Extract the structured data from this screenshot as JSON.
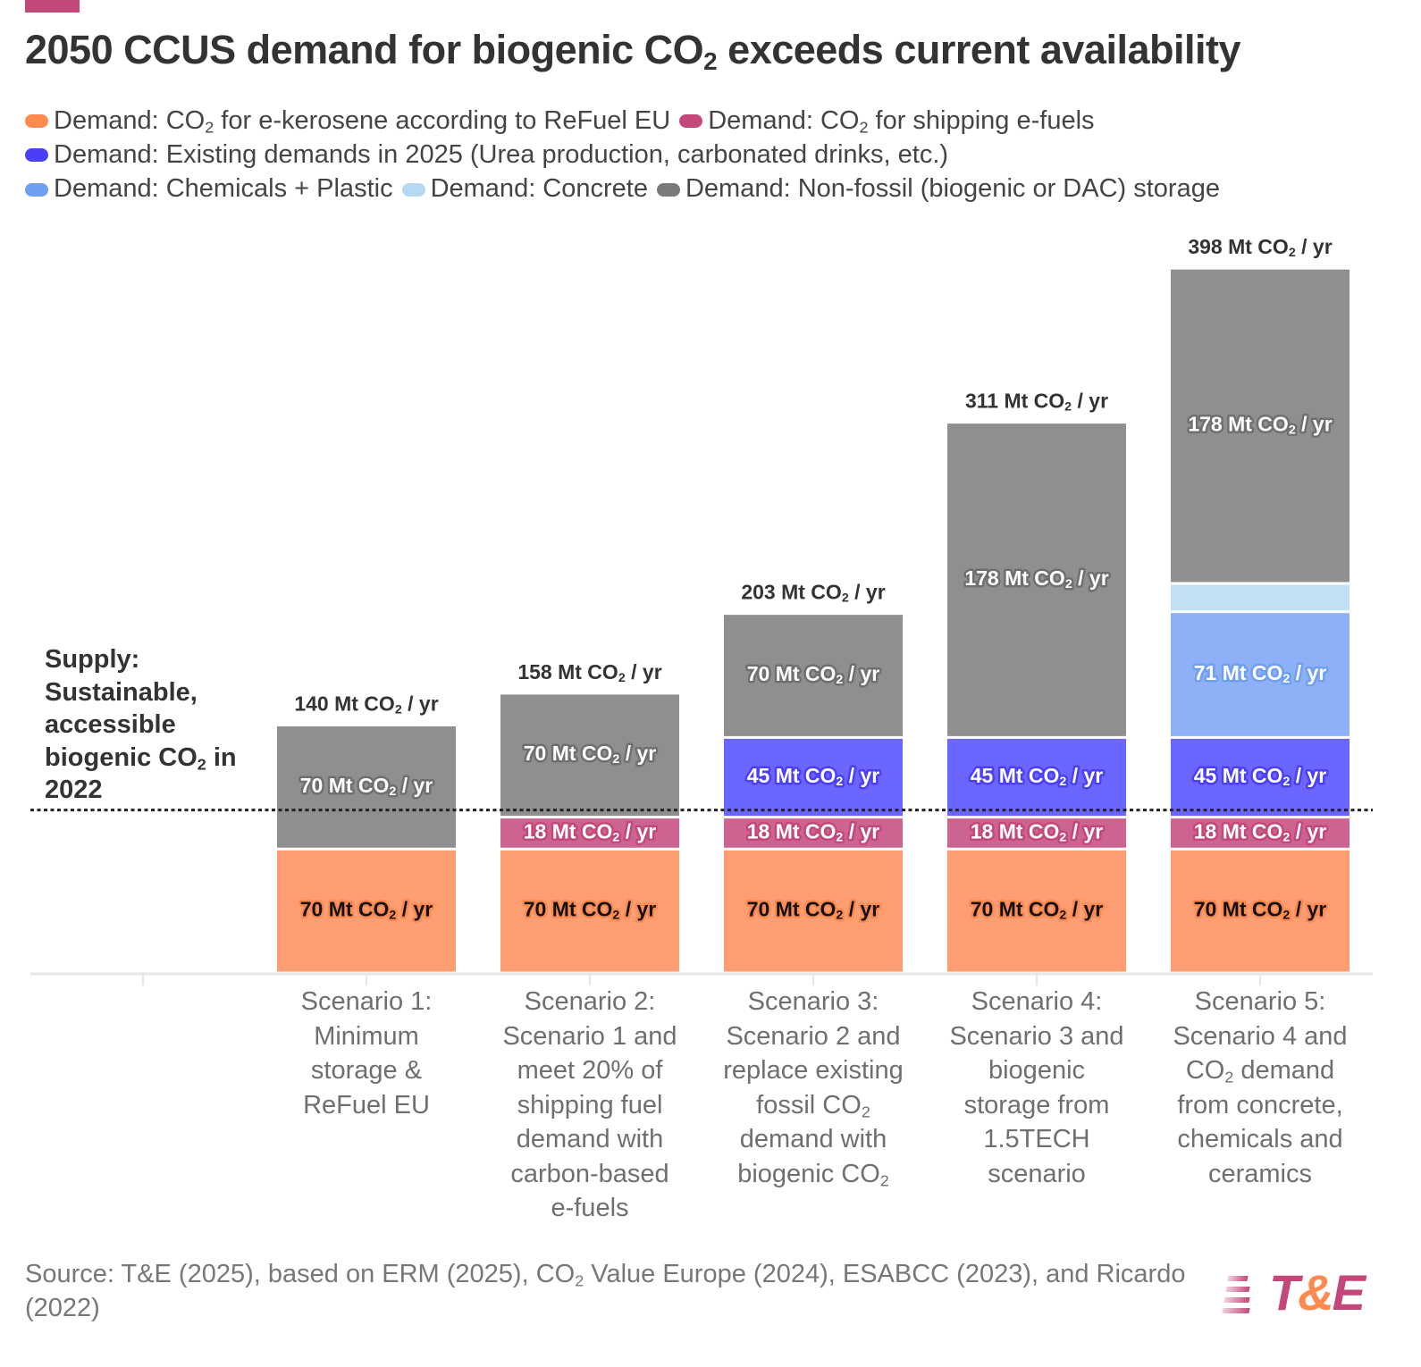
{
  "header": {
    "title_pre": "2050 CCUS demand for biogenic CO",
    "title_sub": "2",
    "title_post": " exceeds current availability",
    "accent_color": "#c4477a"
  },
  "legend": {
    "rows": [
      [
        {
          "pre": "Demand: CO",
          "sub": "2",
          "post": " for e-kerosene according to ReFuel EU",
          "color": "#ff8a50"
        },
        {
          "pre": "Demand: CO",
          "sub": "2",
          "post": " for shipping e-fuels",
          "color": "#c4477a"
        }
      ],
      [
        {
          "pre": "Demand: Existing demands in 2025 (Urea production, carbonated drinks, etc.)",
          "sub": "",
          "post": "",
          "color": "#4a3ff7"
        }
      ],
      [
        {
          "pre": "Demand: Chemicals + Plastic",
          "sub": "",
          "post": "",
          "color": "#6f9ff0"
        },
        {
          "pre": "Demand: Concrete",
          "sub": "",
          "post": "",
          "color": "#b5d8f3"
        },
        {
          "pre": "Demand: Non-fossil (biogenic or DAC) storage",
          "sub": "",
          "post": "",
          "color": "#7a7a7a"
        }
      ]
    ]
  },
  "supply": {
    "lines": [
      "Supply:",
      "Sustainable,",
      "accessible"
    ],
    "line4_pre": "biogenic CO",
    "line4_sub": "2",
    "line4_post": " in",
    "line5": "2022"
  },
  "source": {
    "pre": "Source: T&E (2025), based on ERM (2025), CO",
    "sub": "2",
    "post": " Value Europe (2024), ESABCC (2023), and Ricardo (2022)"
  },
  "logo": {
    "t": "T",
    "amp": "&",
    "e": "E"
  },
  "chart_data": {
    "type": "bar",
    "stacked": true,
    "title": "2050 CCUS demand for biogenic CO2 exceeds current availability",
    "xlabel": "",
    "ylabel": "",
    "unit": "Mt CO2 / yr",
    "ylim": [
      0,
      400
    ],
    "grid": false,
    "legend_position": "top",
    "categories": [
      [
        "Scenario 1:",
        "Minimum",
        "storage &",
        "ReFuel EU"
      ],
      [
        "Scenario 2:",
        "Scenario 1 and",
        "meet 20% of",
        "shipping fuel",
        "demand with",
        "carbon-based",
        "e-fuels"
      ],
      [
        "Scenario 3:",
        "Scenario 2 and",
        "replace existing",
        "fossil CO₂",
        "demand with",
        "biogenic CO₂"
      ],
      [
        "Scenario 4:",
        "Scenario 3 and",
        "biogenic",
        "storage from",
        "1.5TECH",
        "scenario"
      ],
      [
        "Scenario 5:",
        "Scenario 4 and",
        "CO₂ demand",
        "from concrete,",
        "chemicals and",
        "ceramics"
      ]
    ],
    "series": [
      {
        "name": "Demand: CO2 for e-kerosene according to ReFuel EU",
        "color": "#ff9e72",
        "label_color": "#111111",
        "halo": "#ff8a50",
        "values": [
          70,
          70,
          70,
          70,
          70
        ]
      },
      {
        "name": "Demand: CO2 for shipping e-fuels",
        "color": "#cd6391",
        "label_color": "#ffffff",
        "halo": "#c4477a",
        "values": [
          0,
          18,
          18,
          18,
          18
        ]
      },
      {
        "name": "Demand: Existing demands in 2025 (Urea production, carbonated drinks, etc.)",
        "color": "#6b66ff",
        "label_color": "#ffffff",
        "halo": "#4a3ff7",
        "values": [
          0,
          0,
          45,
          45,
          45
        ]
      },
      {
        "name": "Demand: Chemicals + Plastic",
        "color": "#8db0f6",
        "label_color": "#ffffff",
        "halo": "#6f9ff0",
        "values": [
          0,
          0,
          0,
          0,
          71
        ]
      },
      {
        "name": "Demand: Concrete",
        "color": "#c3dff4",
        "label_color": "#ffffff",
        "halo": "#b5d8f3",
        "values": [
          0,
          0,
          0,
          0,
          16
        ],
        "show_label": false
      },
      {
        "name": "Demand: Non-fossil (biogenic or DAC) storage",
        "color": "#8f8f8f",
        "label_color": "#ffffff",
        "halo": "#6f6f6f",
        "values": [
          70,
          70,
          70,
          178,
          178
        ]
      }
    ],
    "totals": [
      140,
      158,
      203,
      311,
      398
    ],
    "reference_line": {
      "label": "Supply: Sustainable, accessible biogenic CO2 in 2022",
      "value": 92,
      "style": "dotted"
    }
  }
}
